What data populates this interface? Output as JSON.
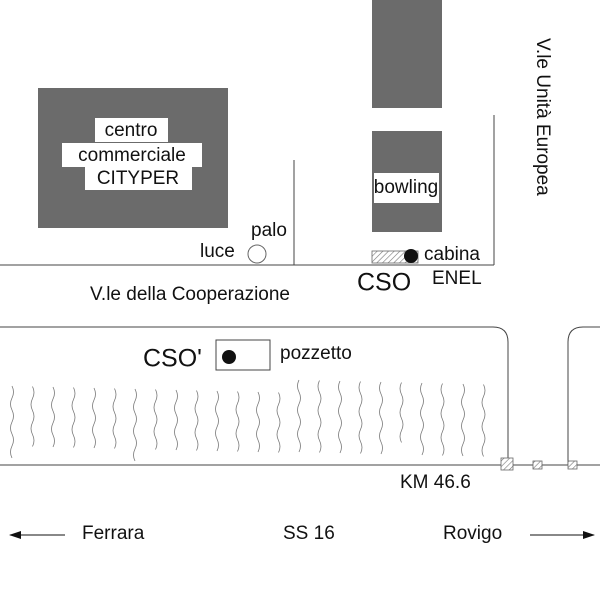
{
  "buildings": {
    "mall": [
      "centro",
      "commerciale",
      "CITYPER"
    ],
    "bowling": "bowling"
  },
  "labels": {
    "palo": "palo",
    "luce": "luce",
    "cabina": "cabina",
    "enel": "ENEL",
    "cso": "CSO",
    "street_cooperazione": "V.le della Cooperazione",
    "street_unita": "V.le Unità Europea",
    "cso_prime": "CSO'",
    "pozzetto": "pozzetto",
    "km": "KM 46.6"
  },
  "road": {
    "left": "Ferrara",
    "name": "SS 16",
    "right": "Rovigo"
  }
}
